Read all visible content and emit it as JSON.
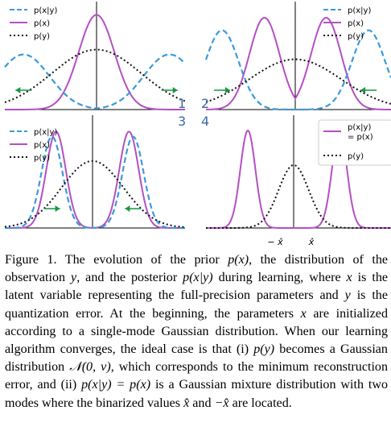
{
  "figure": {
    "panel_numbers": [
      "1",
      "2",
      "3",
      "4"
    ],
    "panels": [
      {
        "legend": [
          "p(x|y)",
          "p(x)",
          "p(y)"
        ],
        "legend_position": "top-left",
        "description_curves": {
          "p_x_given_y": {
            "modes": [
              -0.9,
              0.9
            ],
            "width": 0.32,
            "peak": 0.57
          },
          "p_x": {
            "mean": 0.0,
            "width": 0.22,
            "peak": 0.98
          },
          "p_y": {
            "mean": 0.0,
            "width": 0.55,
            "peak": 0.62
          }
        },
        "arrows": "outward"
      },
      {
        "legend": [
          "p(x|y)",
          "p(x)",
          "p(y)"
        ],
        "legend_position": "top-right",
        "description_curves": {
          "p_x_given_y": {
            "modes": [
              -0.88,
              0.88
            ],
            "width": 0.2,
            "peak": 0.82
          },
          "p_x": {
            "modes": [
              -0.37,
              0.37
            ],
            "width": 0.18,
            "peak": 0.95
          },
          "p_y": {
            "mean": 0.0,
            "width": 0.55,
            "peak": 0.52
          }
        },
        "arrows": "inward"
      },
      {
        "legend": [
          "p(x|y)",
          "p(x)",
          "p(y)"
        ],
        "legend_position": "top-left",
        "description_curves": {
          "p_x_given_y": {
            "modes": [
              -0.5,
              0.5
            ],
            "width": 0.13,
            "peak": 0.9
          },
          "p_x": {
            "modes": [
              -0.45,
              0.45
            ],
            "width": 0.12,
            "peak": 0.95
          },
          "p_y": {
            "mean": 0.0,
            "width": 0.38,
            "peak": 0.66
          }
        },
        "arrows": "inward"
      },
      {
        "legend": [
          "p(x|y)\n= p(x)",
          "p(y)"
        ],
        "legend_position": "top-right",
        "description_curves": {
          "p_x_given_y": {
            "modes": [
              -0.55,
              0.55
            ],
            "width": 0.09,
            "peak": 0.96
          },
          "p_y": {
            "mean": 0.0,
            "width": 0.18,
            "peak": 0.62
          }
        },
        "arrows": "none"
      }
    ],
    "x_tick_labels": [
      "− x̂",
      "x̂"
    ],
    "colors": {
      "p_x_given_y": "#3a9ad9",
      "p_x": "#b44fc4",
      "p_y": "#111111",
      "arrow": "#1a9641",
      "axis": "#000000"
    }
  },
  "caption": {
    "prefix": "Figure 1.",
    "segments": [
      "The evolution of the prior ",
      "p(x)",
      ", the distribution of the observation ",
      "y",
      ", and the posterior ",
      "p(x|y)",
      " during learning, where ",
      "x",
      " is the latent variable representing the full-precision parameters and ",
      "y",
      " is the quantization error. At the beginning, the parameters ",
      "x",
      " are initialized according to a single-mode Gaussian distribution. When our learning algorithm converges, the ideal case is that (i) ",
      "p(y)",
      " becomes a Gaussian distribution ",
      "𝒩(0, ν)",
      ", which corresponds to the minimum reconstruction error, and (ii) ",
      "p(x|y) = p(x)",
      " is a Gaussian mixture distribution with two modes where the binarized values ",
      "x̂",
      " and ",
      "−x̂",
      " are located."
    ]
  }
}
